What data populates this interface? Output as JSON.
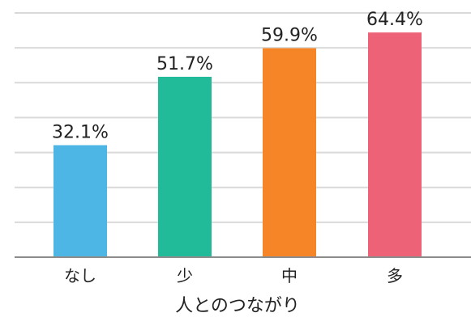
{
  "chart_data": {
    "type": "bar",
    "categories": [
      "なし",
      "少",
      "中",
      "多"
    ],
    "values": [
      32.1,
      51.7,
      59.9,
      64.4
    ],
    "data_labels": [
      "32.1%",
      "51.7%",
      "59.9%",
      "64.4%"
    ],
    "colors": [
      "#4db6e5",
      "#22bb99",
      "#f58526",
      "#ee6277"
    ],
    "xlabel": "人とのつながり",
    "ylabel": "",
    "ylim": [
      0,
      70
    ],
    "grid": true,
    "gridline_count": 7
  }
}
